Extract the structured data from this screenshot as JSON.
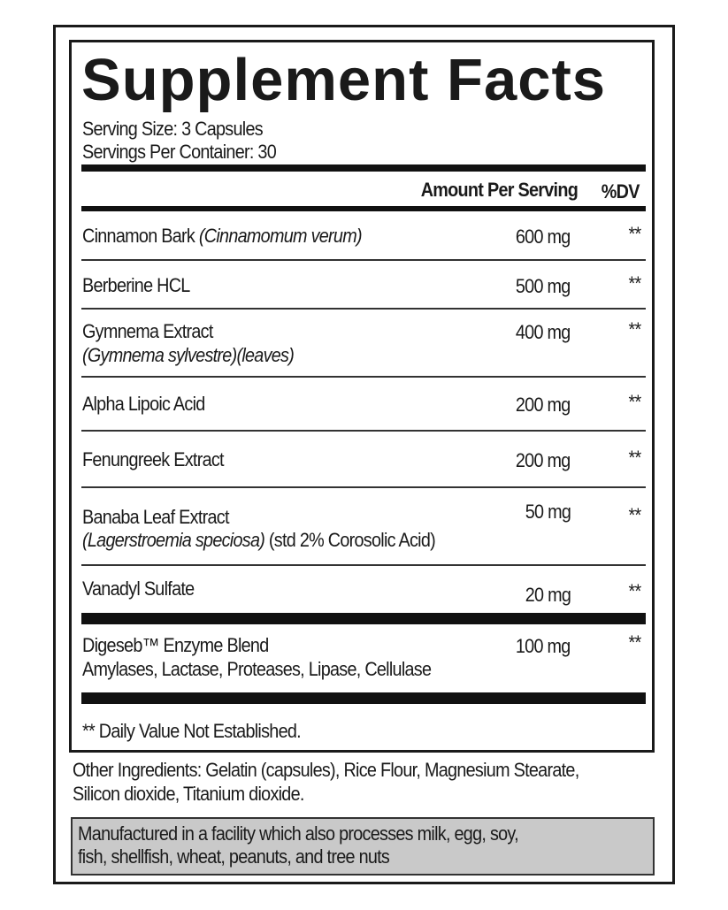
{
  "title": "Supplement Facts",
  "serving_size": "Serving Size: 3 Capsules",
  "servings_per_container": "Servings Per Container: 30",
  "header": {
    "amount": "Amount Per Serving",
    "dv": "%DV"
  },
  "rows": [
    {
      "name": "Cinnamon Bark",
      "sub": "(Cinnamomum verum)",
      "amount": "600 mg",
      "dv": "**"
    },
    {
      "name": "Berberine HCL",
      "amount": "500 mg",
      "dv": "**"
    },
    {
      "name": "Gymnema Extract",
      "sub": "(Gymnema sylvestre)(leaves)",
      "amount": "400 mg",
      "dv": "**"
    },
    {
      "name": "Alpha Lipoic Acid",
      "amount": "200 mg",
      "dv": "**"
    },
    {
      "name": "Fenungreek Extract",
      "amount": "200 mg",
      "dv": "**"
    },
    {
      "name": "Banaba Leaf Extract",
      "sub": "(Lagerstroemia speciosa)",
      "sub2": " (std 2% Corosolic Acid)",
      "amount": "50 mg",
      "dv": "**"
    },
    {
      "name": "Vanadyl Sulfate",
      "amount": "20 mg",
      "dv": "**"
    },
    {
      "name": "Digeseb™ Enzyme Blend",
      "sub": "Amylases, Lactase, Proteases, Lipase, Cellulase",
      "amount": "100 mg",
      "dv": "**"
    }
  ],
  "footnote": "** Daily Value Not Established.",
  "other_ingredients": [
    "Other Ingredients: Gelatin (capsules), Rice Flour, Magnesium Stearate,",
    "Silicon dioxide, Titanium dioxide."
  ],
  "allergen": [
    "Manufactured in a facility which also processes milk, egg, soy,",
    "fish, shellfish, wheat, peanuts, and tree nuts"
  ],
  "colors": {
    "allergen_bg": "#c9c9c9",
    "ink": "#1a1a1a"
  }
}
